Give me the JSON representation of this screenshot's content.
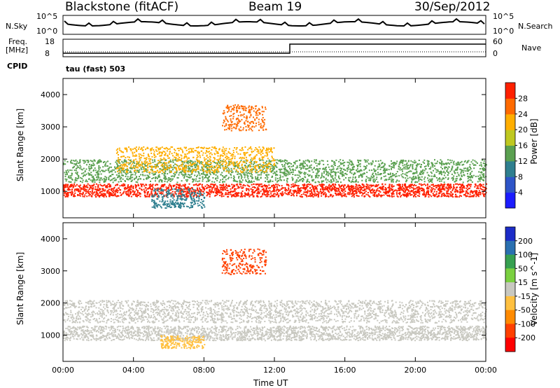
{
  "header": {
    "site": "Blackstone (fitACF)",
    "beam": "Beam 19",
    "date": "30/Sep/2012"
  },
  "top_panels": {
    "nsky_label": "N.Sky",
    "nsky_ticks": [
      "10^5",
      "10^0"
    ],
    "nsearch_label": "N.Search",
    "nsearch_ticks": [
      "10^5",
      "10^0"
    ],
    "freq_label_line1": "Freq.",
    "freq_label_line2": "[MHz]",
    "freq_ticks": [
      "18",
      "8"
    ],
    "nave_label": "Nave",
    "nave_ticks": [
      "60",
      "0"
    ],
    "cpid_label": "CPID",
    "cpid_value": "tau (fast) 503"
  },
  "chart_data": [
    {
      "type": "heatmap",
      "name": "power",
      "ylabel": "Slant Range [km]",
      "xlabel": "Time UT",
      "x_ticks": [
        "00:00",
        "04:00",
        "08:00",
        "12:00",
        "16:00",
        "20:00",
        "00:00"
      ],
      "x_range_hours": [
        0,
        24
      ],
      "y_ticks": [
        1000,
        2000,
        3000,
        4000
      ],
      "ylim": [
        180,
        4500
      ],
      "colorbar": {
        "label": "Power [dB]",
        "ticks": [
          "4",
          "8",
          "12",
          "16",
          "20",
          "24",
          "28"
        ],
        "colors": [
          "#1c1cff",
          "#2e55c8",
          "#2f7f8f",
          "#5aa050",
          "#bfc820",
          "#ffae00",
          "#ff6a00",
          "#ff2000"
        ]
      },
      "features": [
        {
          "desc": "main band",
          "t_start": 0,
          "t_end": 24,
          "range_km": [
            850,
            1250
          ],
          "color": "#ff2000"
        },
        {
          "desc": "upper echo band",
          "t_start": 0,
          "t_end": 24,
          "range_km": [
            1300,
            2000
          ],
          "color": "#5aa050"
        },
        {
          "desc": "arc",
          "t_start": 3,
          "t_end": 12,
          "range_km": [
            1600,
            2400
          ],
          "color": "#ffae00"
        },
        {
          "desc": "evening patch",
          "t_start": 9,
          "t_end": 11.5,
          "range_km": [
            2900,
            3700
          ],
          "color": "#ff6a00"
        },
        {
          "desc": "morning low",
          "t_start": 5,
          "t_end": 8,
          "range_km": [
            500,
            1100
          ],
          "color": "#2f7f8f"
        }
      ]
    },
    {
      "type": "heatmap",
      "name": "velocity",
      "ylabel": "Slant Range [km]",
      "xlabel": "Time UT",
      "x_ticks": [
        "00:00",
        "04:00",
        "08:00",
        "12:00",
        "16:00",
        "20:00",
        "00:00"
      ],
      "x_range_hours": [
        0,
        24
      ],
      "y_ticks": [
        1000,
        2000,
        3000,
        4000
      ],
      "ylim": [
        180,
        4500
      ],
      "colorbar": {
        "label": "Velocity [m s^-1]",
        "ticks": [
          "200",
          "100",
          "50",
          "15",
          "-15",
          "-50",
          "-100",
          "-200"
        ],
        "colors": [
          "#1c2cc8",
          "#2a70b0",
          "#36a050",
          "#7ad040",
          "#c8c8c0",
          "#ffc040",
          "#ff8a00",
          "#ff4000",
          "#ff0000"
        ]
      },
      "features": [
        {
          "desc": "gray band",
          "t_start": 0,
          "t_end": 24,
          "range_km": [
            850,
            1300
          ],
          "color": "#c8c8c0"
        },
        {
          "desc": "upper gray",
          "t_start": 0,
          "t_end": 24,
          "range_km": [
            1400,
            2100
          ],
          "color": "#c8c8c0"
        },
        {
          "desc": "orange low",
          "t_start": 5.5,
          "t_end": 8,
          "range_km": [
            600,
            1000
          ],
          "color": "#ffc040"
        },
        {
          "desc": "red patch",
          "t_start": 9,
          "t_end": 11.5,
          "range_km": [
            2900,
            3700
          ],
          "color": "#ff4000"
        }
      ]
    }
  ]
}
